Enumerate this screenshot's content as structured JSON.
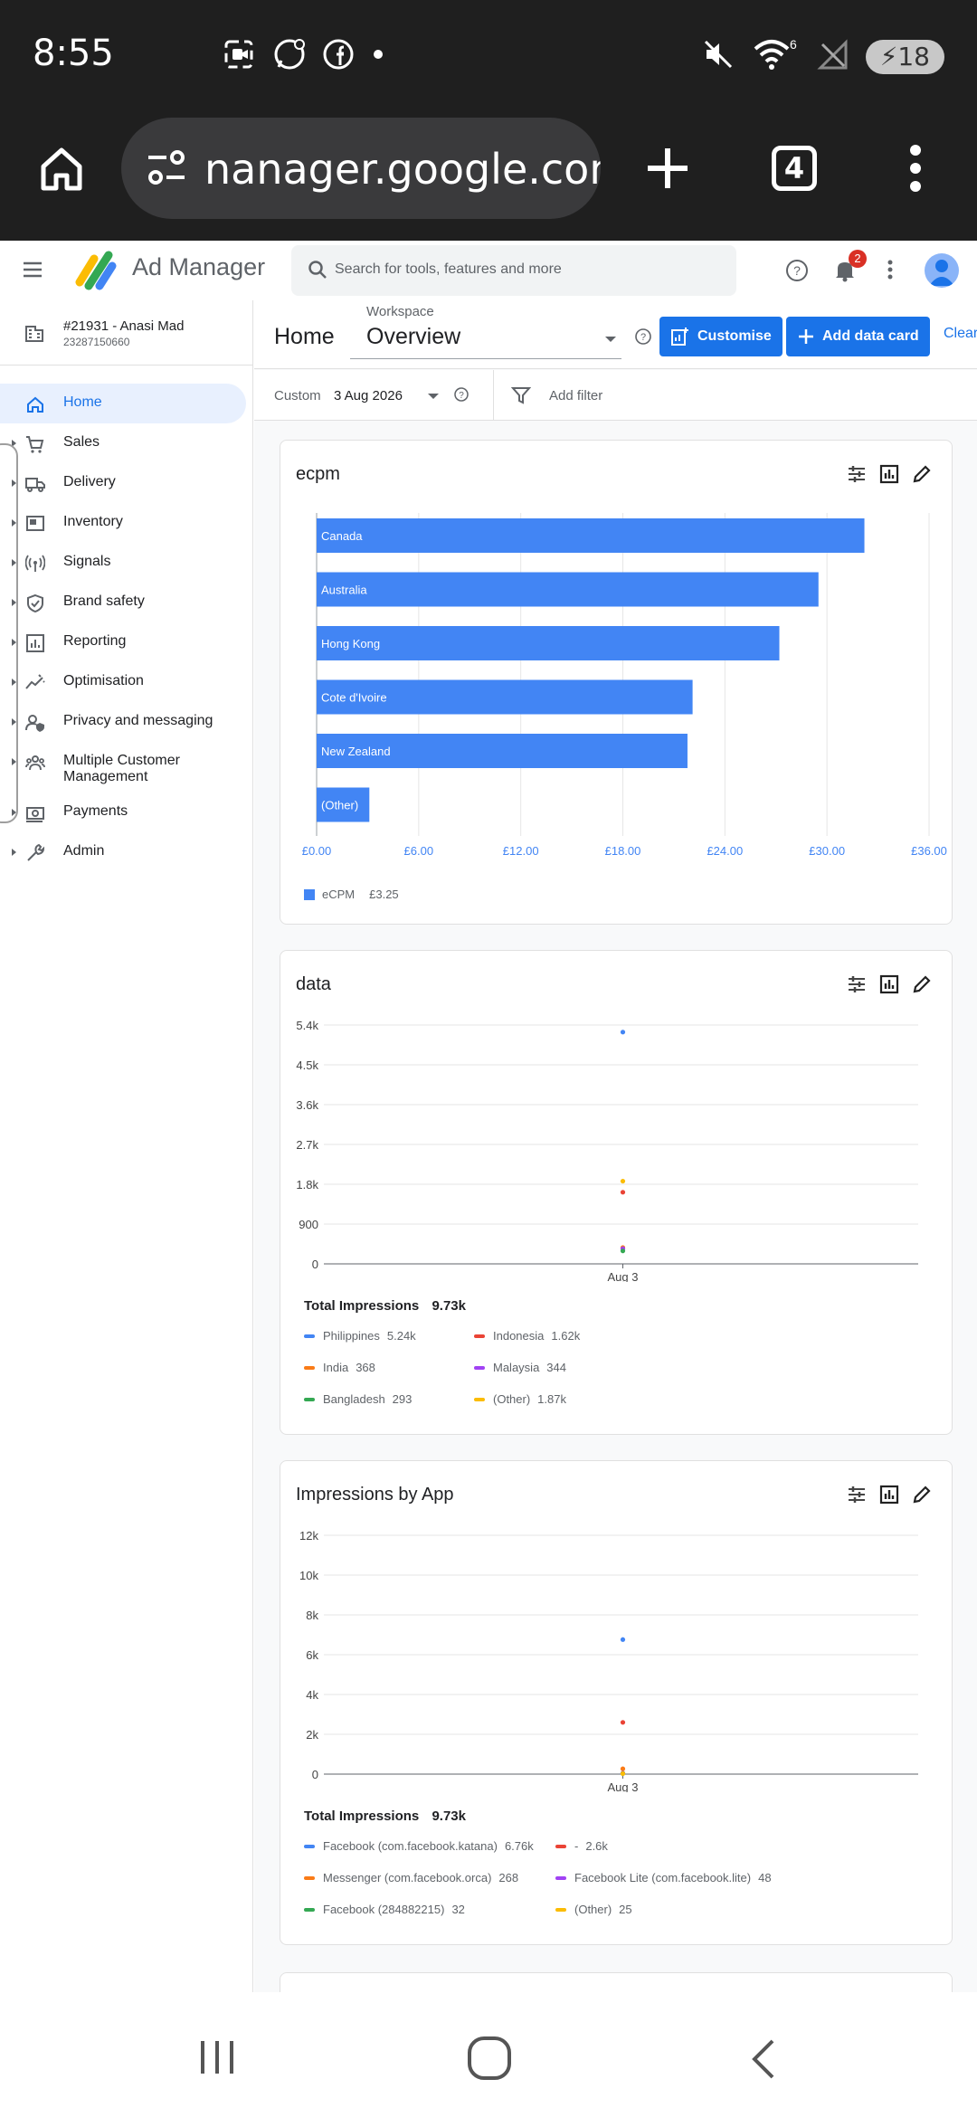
{
  "status_bar": {
    "time": "8:55",
    "battery": "18",
    "wifi_badge": "6"
  },
  "browser": {
    "url": "nanager.google.com",
    "tab_count": "4"
  },
  "app": {
    "name": "Ad Manager",
    "search_placeholder": "Search for tools, features and more",
    "notifications": "2"
  },
  "account": {
    "name": "#21931 - Anasi Mad",
    "id": "23287150660"
  },
  "sidebar": {
    "items": [
      {
        "label": "Home",
        "icon": "home-icon",
        "active": true
      },
      {
        "label": "Sales",
        "icon": "cart-icon"
      },
      {
        "label": "Delivery",
        "icon": "truck-icon"
      },
      {
        "label": "Inventory",
        "icon": "inventory-icon"
      },
      {
        "label": "Signals",
        "icon": "signals-icon"
      },
      {
        "label": "Brand safety",
        "icon": "shield-icon"
      },
      {
        "label": "Reporting",
        "icon": "reporting-icon"
      },
      {
        "label": "Optimisation",
        "icon": "optimisation-icon"
      },
      {
        "label": "Privacy and messaging",
        "icon": "privacy-icon"
      },
      {
        "label": "Multiple Customer Management",
        "icon": "customers-icon"
      },
      {
        "label": "Payments",
        "icon": "payments-icon"
      },
      {
        "label": "Admin",
        "icon": "wrench-icon"
      }
    ]
  },
  "header": {
    "title": "Home",
    "workspace_label": "Workspace",
    "workspace_value": "Overview",
    "customise": "Customise",
    "add_data_card": "Add data card",
    "clear": "Clear"
  },
  "filters": {
    "range_label": "Custom",
    "date": "3 Aug 2026",
    "add_filter": "Add filter"
  },
  "cards": [
    {
      "title": "ecpm",
      "legend": [
        {
          "name": "eCPM",
          "value": "£3.25",
          "color": "#4285f4"
        }
      ]
    },
    {
      "title": "data",
      "total_label": "Total Impressions",
      "total_value": "9.73k",
      "legend": [
        {
          "name": "Philippines",
          "value": "5.24k",
          "color": "#4285f4"
        },
        {
          "name": "Indonesia",
          "value": "1.62k",
          "color": "#ea4335"
        },
        {
          "name": "India",
          "value": "368",
          "color": "#fa7b17"
        },
        {
          "name": "Malaysia",
          "value": "344",
          "color": "#a142f4"
        },
        {
          "name": "Bangladesh",
          "value": "293",
          "color": "#34a853"
        },
        {
          "name": "(Other)",
          "value": "1.87k",
          "color": "#fbbc04"
        }
      ]
    },
    {
      "title": "Impressions by App",
      "total_label": "Total Impressions",
      "total_value": "9.73k",
      "legend": [
        {
          "name": "Facebook (com.facebook.katana)",
          "value": "6.76k",
          "color": "#4285f4"
        },
        {
          "name": "-",
          "value": "2.6k",
          "color": "#ea4335"
        },
        {
          "name": "Messenger (com.facebook.orca)",
          "value": "268",
          "color": "#fa7b17"
        },
        {
          "name": "Facebook Lite (com.facebook.lite)",
          "value": "48",
          "color": "#a142f4"
        },
        {
          "name": "Facebook (284882215)",
          "value": "32",
          "color": "#34a853"
        },
        {
          "name": "(Other)",
          "value": "25",
          "color": "#fbbc04"
        }
      ]
    }
  ],
  "chart_data": [
    {
      "type": "bar",
      "orientation": "horizontal",
      "title": "ecpm",
      "categories": [
        "Canada",
        "Australia",
        "Hong Kong",
        "Cote d'Ivoire",
        "New Zealand",
        "(Other)"
      ],
      "values": [
        32.2,
        29.5,
        27.2,
        22.1,
        21.8,
        3.1
      ],
      "xlim": [
        0,
        36
      ],
      "x_ticks": [
        "£0.00",
        "£6.00",
        "£12.00",
        "£18.00",
        "£24.00",
        "£30.00",
        "£36.00"
      ],
      "x_tick_values": [
        0,
        6,
        12,
        18,
        24,
        30,
        36
      ],
      "color": "#4285f4"
    },
    {
      "type": "scatter",
      "title": "data",
      "categories": [
        "Aug 3"
      ],
      "ylim": [
        0,
        5400
      ],
      "y_ticks": [
        "0",
        "900",
        "1.8k",
        "2.7k",
        "3.6k",
        "4.5k",
        "5.4k"
      ],
      "y_tick_values": [
        0,
        900,
        1800,
        2700,
        3600,
        4500,
        5400
      ],
      "series": [
        {
          "name": "Philippines",
          "values": [
            5240
          ],
          "color": "#4285f4"
        },
        {
          "name": "Indonesia",
          "values": [
            1620
          ],
          "color": "#ea4335"
        },
        {
          "name": "India",
          "values": [
            368
          ],
          "color": "#fa7b17"
        },
        {
          "name": "Malaysia",
          "values": [
            344
          ],
          "color": "#a142f4"
        },
        {
          "name": "Bangladesh",
          "values": [
            293
          ],
          "color": "#34a853"
        },
        {
          "name": "(Other)",
          "values": [
            1870
          ],
          "color": "#fbbc04"
        }
      ]
    },
    {
      "type": "scatter",
      "title": "Impressions by App",
      "categories": [
        "Aug 3"
      ],
      "ylim": [
        0,
        12000
      ],
      "y_ticks": [
        "0",
        "2k",
        "4k",
        "6k",
        "8k",
        "10k",
        "12k"
      ],
      "y_tick_values": [
        0,
        2000,
        4000,
        6000,
        8000,
        10000,
        12000
      ],
      "series": [
        {
          "name": "Facebook (com.facebook.katana)",
          "values": [
            6760
          ],
          "color": "#4285f4"
        },
        {
          "name": "-",
          "values": [
            2600
          ],
          "color": "#ea4335"
        },
        {
          "name": "Messenger (com.facebook.orca)",
          "values": [
            268
          ],
          "color": "#fa7b17"
        },
        {
          "name": "Facebook Lite (com.facebook.lite)",
          "values": [
            48
          ],
          "color": "#a142f4"
        },
        {
          "name": "Facebook (284882215)",
          "values": [
            32
          ],
          "color": "#34a853"
        },
        {
          "name": "(Other)",
          "values": [
            25
          ],
          "color": "#fbbc04"
        }
      ]
    }
  ]
}
